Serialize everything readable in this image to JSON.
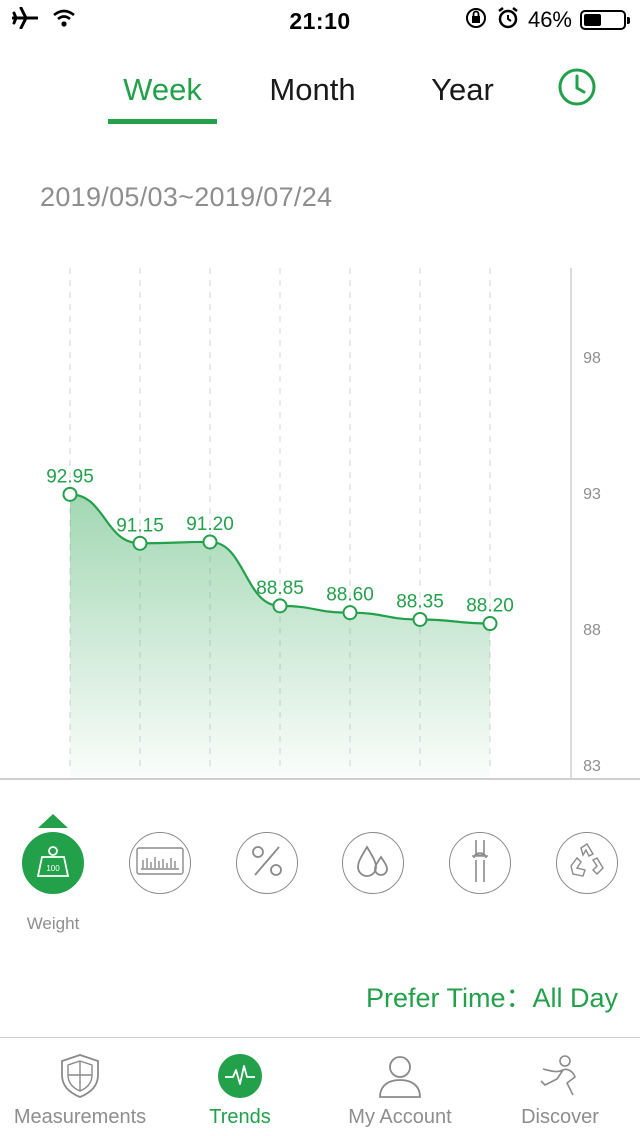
{
  "status_bar": {
    "time": "21:10",
    "battery_percent": "46%",
    "battery_level": 0.46,
    "icons": [
      "airplane-icon",
      "wifi-icon",
      "orientation-lock-icon",
      "alarm-icon",
      "battery-icon"
    ]
  },
  "tabs": [
    {
      "label": "Week",
      "active": true
    },
    {
      "label": "Month",
      "active": false
    },
    {
      "label": "Year",
      "active": false
    }
  ],
  "history_icon": "clock-icon",
  "date_range": "2019/05/03~2019/07/24",
  "colors": {
    "accent": "#22a04a",
    "gray_text": "#8e8e8e",
    "axis": "#cfcfcf"
  },
  "chart_data": {
    "type": "area",
    "y_ticks": [
      "98",
      "93",
      "88",
      "83"
    ],
    "ylim": [
      83,
      98
    ],
    "values": [
      92.95,
      91.15,
      91.2,
      88.85,
      88.6,
      88.35,
      88.2
    ],
    "labels": [
      "92.95",
      "91.15",
      "91.20",
      "88.85",
      "88.60",
      "88.35",
      "88.20"
    ],
    "grid": "vertical-dashed"
  },
  "metrics": {
    "items": [
      {
        "icon": "weight-icon",
        "active": true,
        "label": "Weight",
        "badge": "100"
      },
      {
        "icon": "bar-chart-icon",
        "active": false
      },
      {
        "icon": "percent-icon",
        "active": false
      },
      {
        "icon": "water-drop-icon",
        "active": false
      },
      {
        "icon": "bone-icon",
        "active": false
      },
      {
        "icon": "recycle-icon",
        "active": false
      }
    ]
  },
  "prefer_time": "Prefer Time：All Day",
  "bottom_nav": [
    {
      "label": "Measurements",
      "icon": "shield-icon",
      "active": false
    },
    {
      "label": "Trends",
      "icon": "pulse-icon",
      "active": true
    },
    {
      "label": "My Account",
      "icon": "person-icon",
      "active": false
    },
    {
      "label": "Discover",
      "icon": "exercise-icon",
      "active": false
    }
  ]
}
